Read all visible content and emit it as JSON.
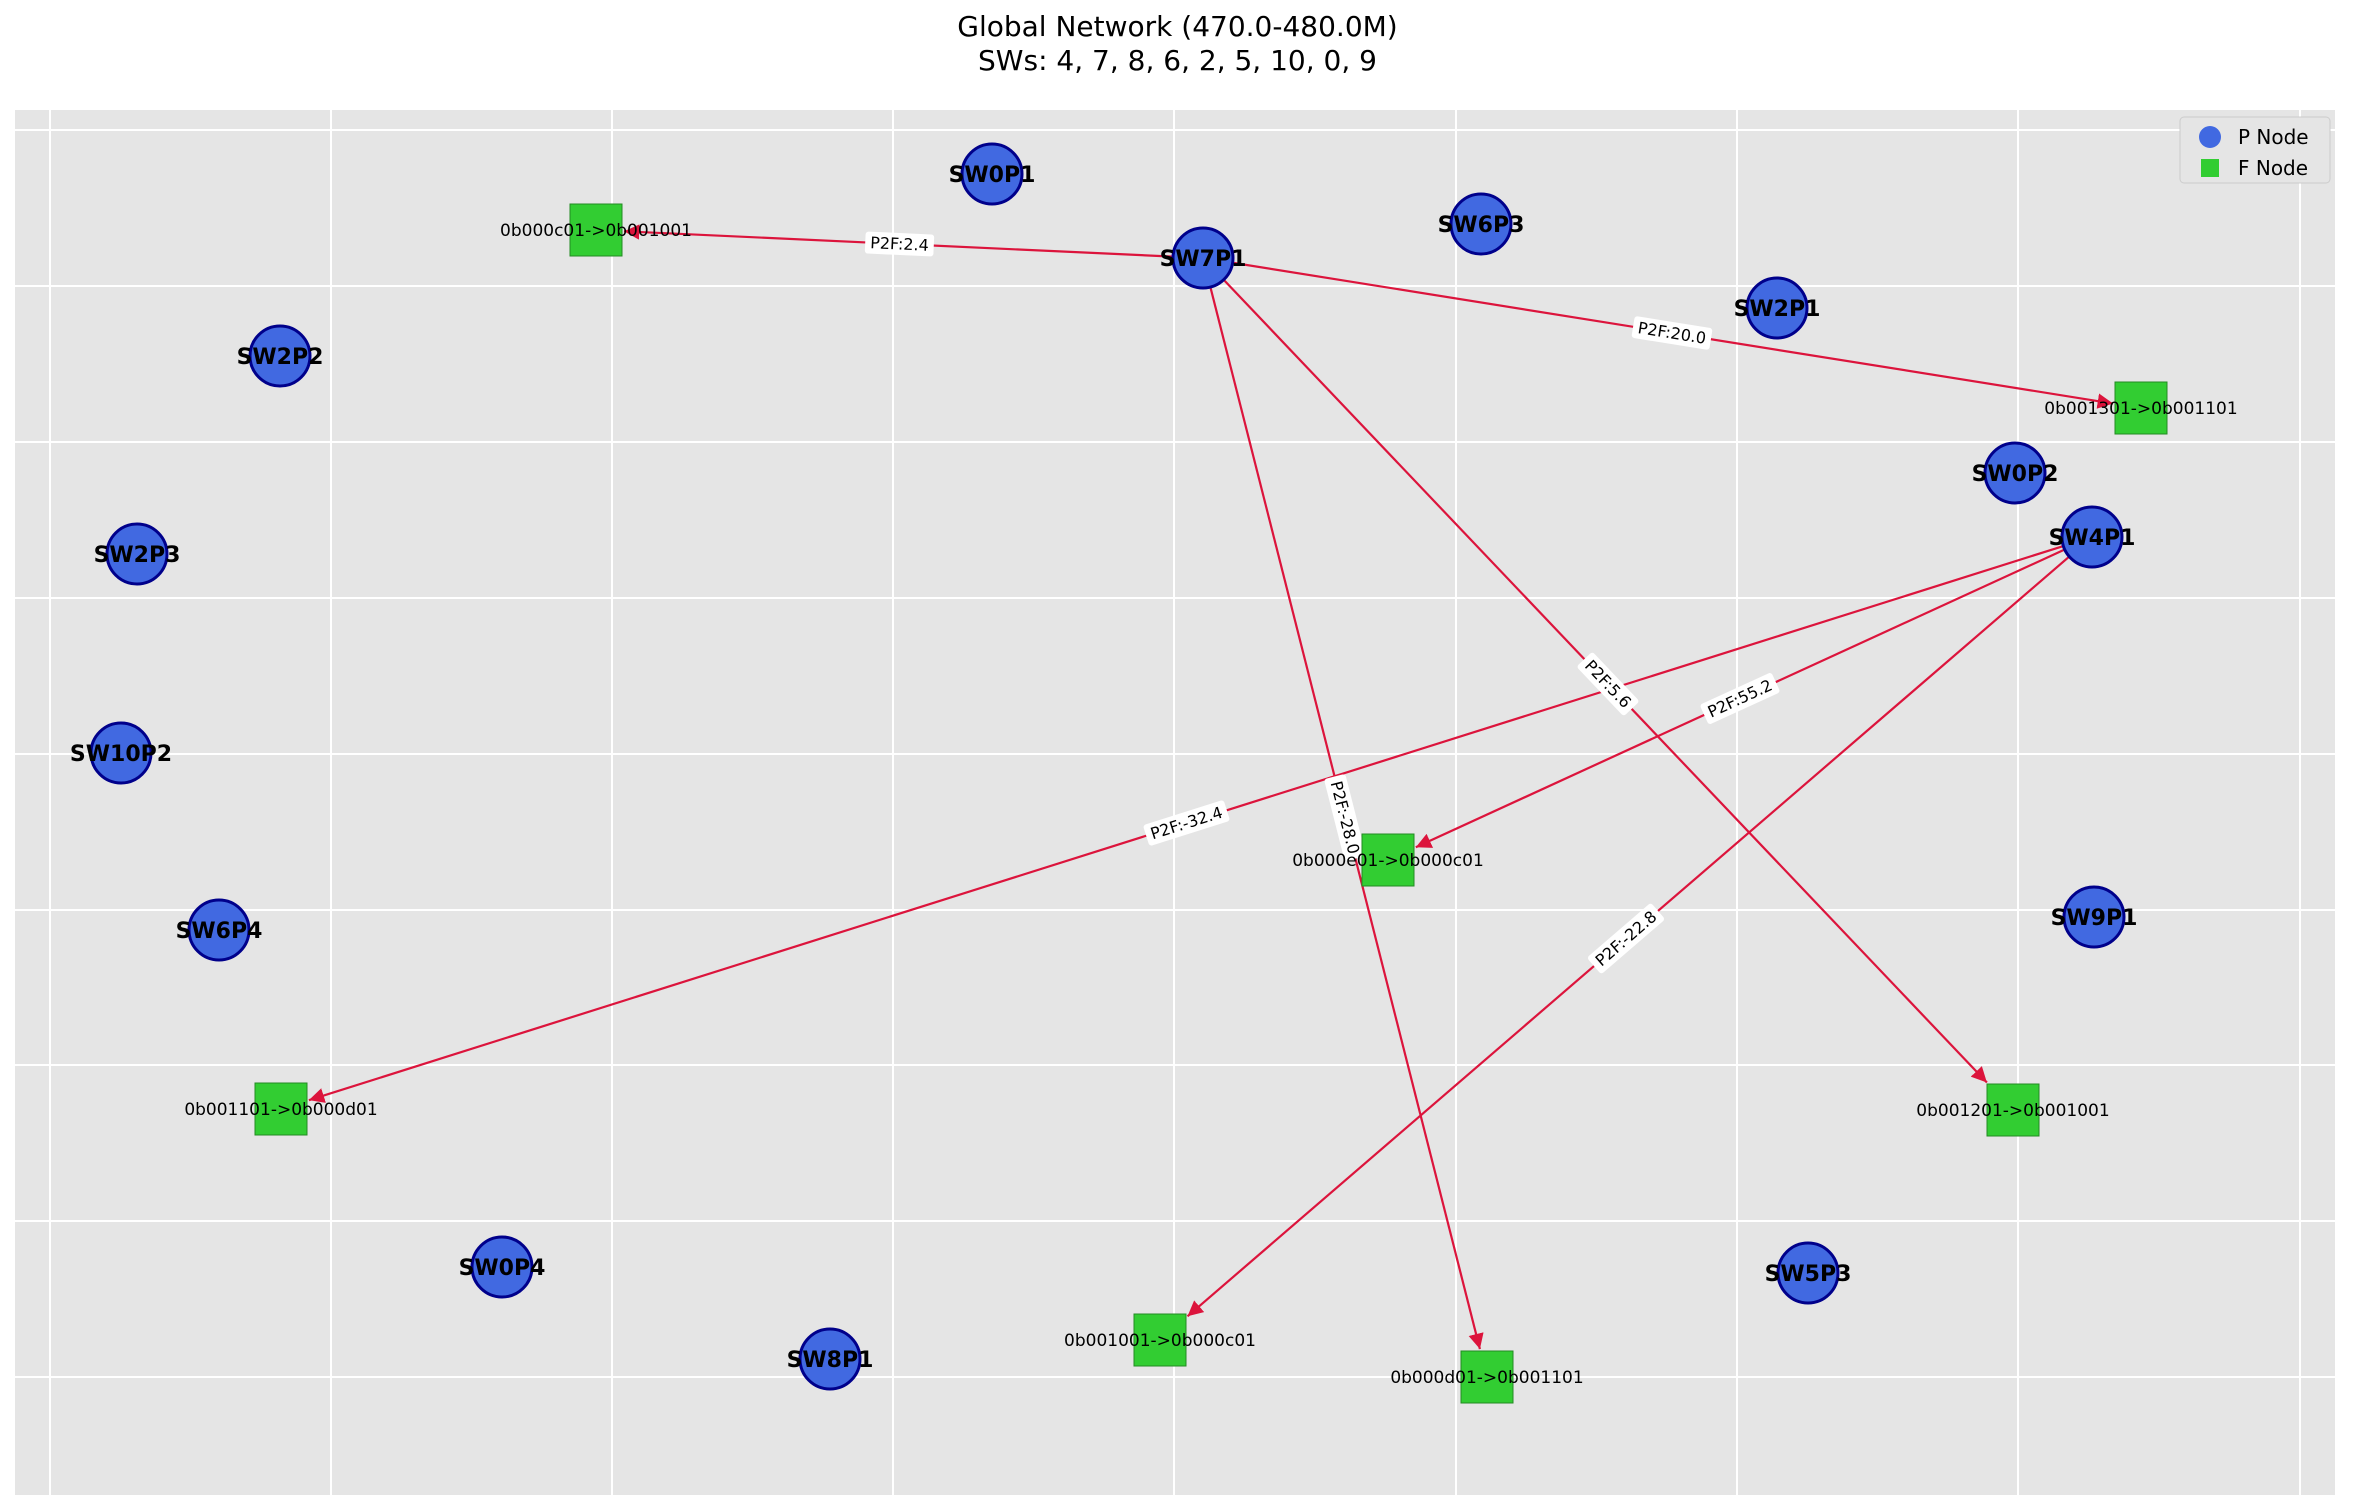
{
  "title": {
    "line1": "Global Network (470.0-480.0M)",
    "line2": "SWs: 4, 7, 8, 6, 2, 5, 10, 0, 9"
  },
  "colors": {
    "background": "#e5e5e5",
    "grid": "#ffffff",
    "p_node_fill": "#4169e1",
    "p_node_stroke": "#00008b",
    "f_node_fill": "#32cd32",
    "f_node_stroke": "#228b22",
    "edge": "#dc143c"
  },
  "legend": {
    "position": "top-right",
    "items": [
      {
        "label": "P Node",
        "shape": "circle"
      },
      {
        "label": "F Node",
        "shape": "square"
      }
    ]
  },
  "p_nodes": [
    {
      "id": "SW0P1",
      "label": "SW0P1"
    },
    {
      "id": "SW6P3",
      "label": "SW6P3"
    },
    {
      "id": "SW7P1",
      "label": "SW7P1"
    },
    {
      "id": "SW2P1",
      "label": "SW2P1"
    },
    {
      "id": "SW2P2",
      "label": "SW2P2"
    },
    {
      "id": "SW0P2",
      "label": "SW0P2"
    },
    {
      "id": "SW4P1",
      "label": "SW4P1"
    },
    {
      "id": "SW2P3",
      "label": "SW2P3"
    },
    {
      "id": "SW10P2",
      "label": "SW10P2"
    },
    {
      "id": "SW6P4",
      "label": "SW6P4"
    },
    {
      "id": "SW9P1",
      "label": "SW9P1"
    },
    {
      "id": "SW0P4",
      "label": "SW0P4"
    },
    {
      "id": "SW5P3",
      "label": "SW5P3"
    },
    {
      "id": "SW8P1",
      "label": "SW8P1"
    }
  ],
  "f_nodes": [
    {
      "id": "F1",
      "label": "0b000c01->0b001001"
    },
    {
      "id": "F2",
      "label": "0b001301->0b001101"
    },
    {
      "id": "F3",
      "label": "0b000e01->0b000c01"
    },
    {
      "id": "F4",
      "label": "0b001101->0b000d01"
    },
    {
      "id": "F5",
      "label": "0b001201->0b001001"
    },
    {
      "id": "F6",
      "label": "0b001001->0b000c01"
    },
    {
      "id": "F7",
      "label": "0b000d01->0b001101"
    }
  ],
  "edges": [
    {
      "from": "SW7P1",
      "to": "F1",
      "label": "P2F:2.4"
    },
    {
      "from": "SW7P1",
      "to": "F2",
      "label": "P2F:20.0"
    },
    {
      "from": "SW7P1",
      "to": "F5",
      "label": "P2F:5.6"
    },
    {
      "from": "SW7P1",
      "to": "F7",
      "label": "P2F:-28.0"
    },
    {
      "from": "SW4P1",
      "to": "F3",
      "label": "P2F:55.2"
    },
    {
      "from": "SW4P1",
      "to": "F4",
      "label": "P2F:-32.4"
    },
    {
      "from": "SW4P1",
      "to": "F6",
      "label": "P2F:-22.8"
    }
  ]
}
